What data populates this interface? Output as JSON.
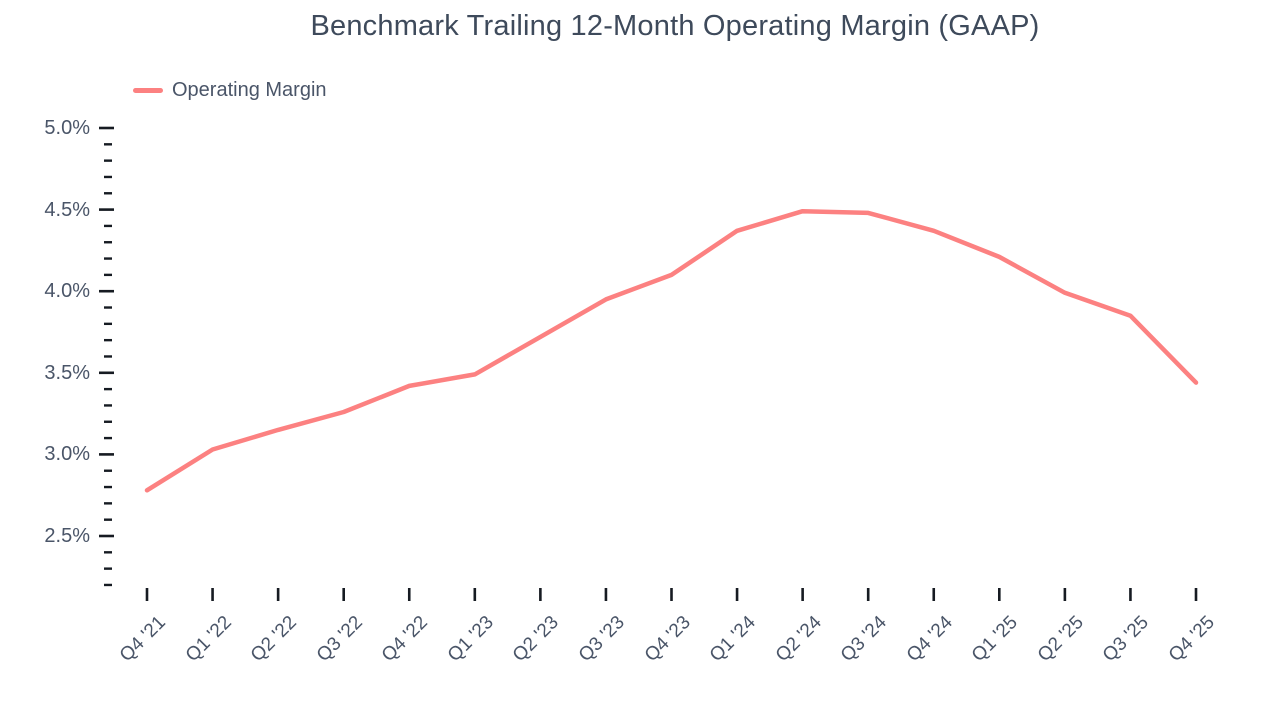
{
  "chart_data": {
    "type": "line",
    "title": "Benchmark Trailing 12-Month Operating Margin (GAAP)",
    "categories": [
      "Q4 '21",
      "Q1 '22",
      "Q2 '22",
      "Q3 '22",
      "Q4 '22",
      "Q1 '23",
      "Q2 '23",
      "Q3 '23",
      "Q4 '23",
      "Q1 '24",
      "Q2 '24",
      "Q3 '24",
      "Q4 '24",
      "Q1 '25",
      "Q2 '25",
      "Q3 '25",
      "Q4 '25"
    ],
    "series": [
      {
        "name": "Operating Margin",
        "color": "#fc8181",
        "values": [
          2.78,
          3.03,
          3.15,
          3.26,
          3.42,
          3.49,
          3.72,
          3.95,
          4.1,
          4.37,
          4.49,
          4.48,
          4.37,
          4.21,
          3.99,
          3.85,
          3.44
        ]
      }
    ],
    "y_axis": {
      "tick_labels": [
        "5.0%",
        "4.5%",
        "4.0%",
        "3.5%",
        "3.0%",
        "2.5%"
      ],
      "tick_values": [
        5.0,
        4.5,
        4.0,
        3.5,
        3.0,
        2.5
      ],
      "minor_step": 0.1,
      "range_min": 2.2,
      "range_max": 5.0,
      "unit": "%"
    },
    "x_axis": {
      "label_rotation_deg": -45
    },
    "legend_position": "top-left",
    "grid": false,
    "colors": {
      "line": "#fc8181",
      "tick": "#161b22",
      "label_text": "#4a5568",
      "title_text": "#3e4a5b",
      "background": "#ffffff"
    }
  }
}
